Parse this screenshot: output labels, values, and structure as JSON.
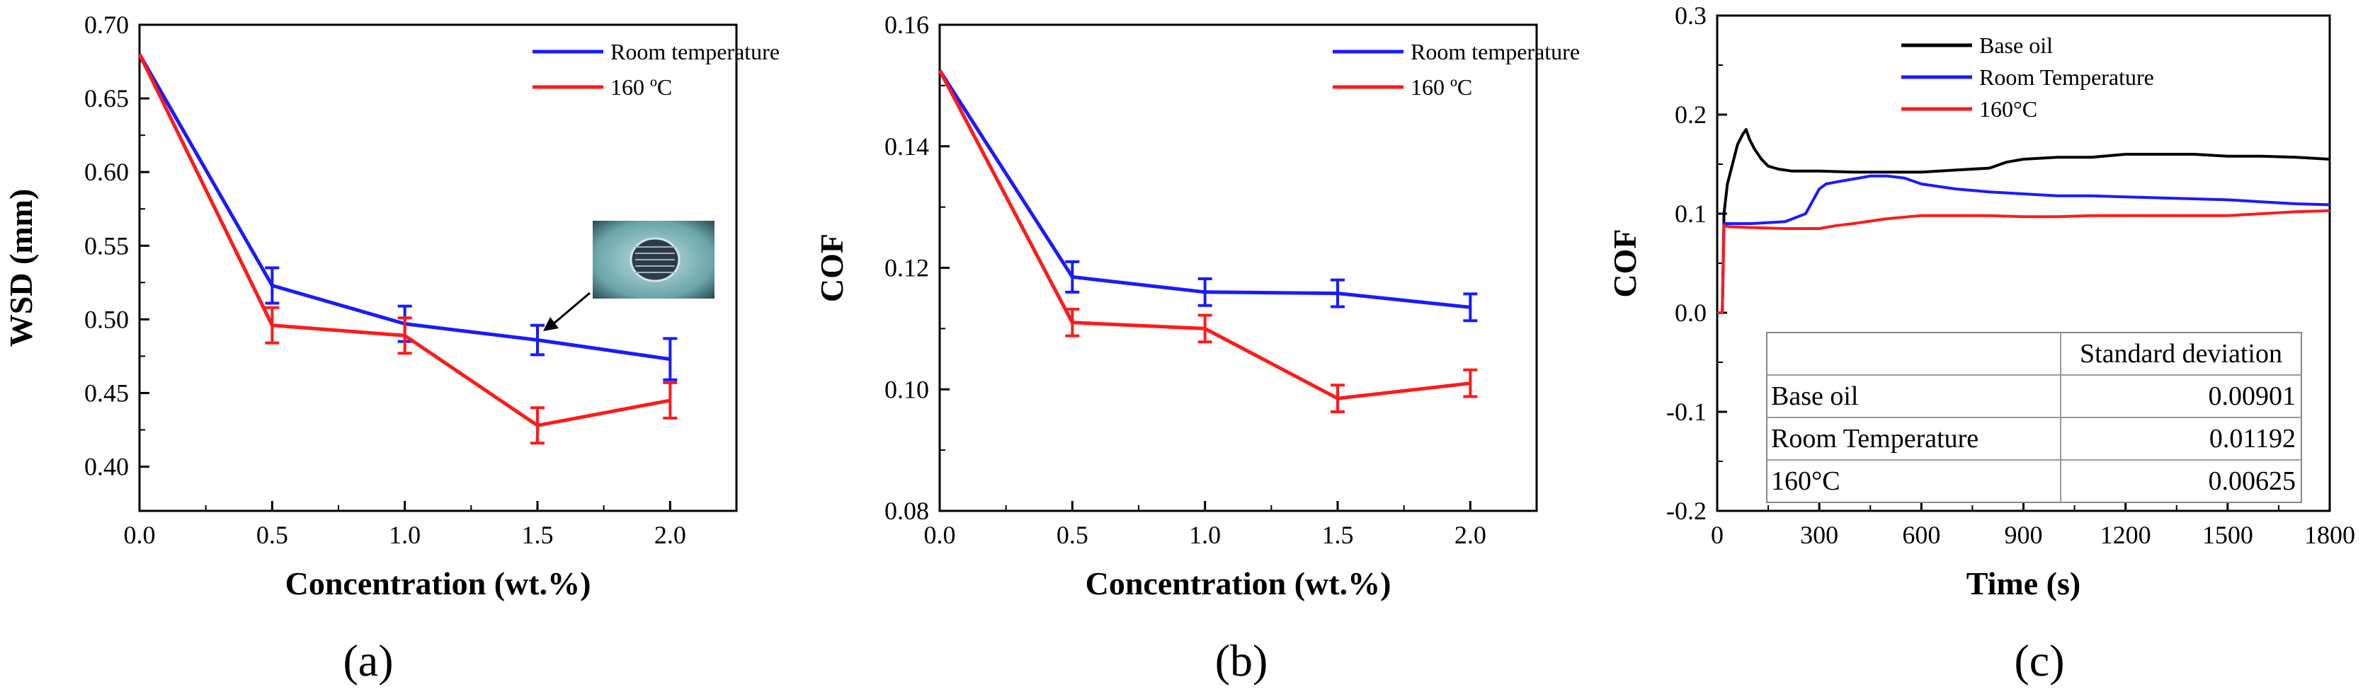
{
  "chart_data": [
    {
      "type": "line",
      "panel_label": "(a)",
      "xlabel": "Concentration (wt.%)",
      "ylabel": "WSD (mm)",
      "xlim": [
        0.0,
        2.25
      ],
      "ylim": [
        0.37,
        0.7
      ],
      "xticks": [
        "0.0",
        "0.5",
        "1.0",
        "1.5",
        "2.0"
      ],
      "yticks": [
        "0.40",
        "0.45",
        "0.50",
        "0.55",
        "0.60",
        "0.65",
        "0.70"
      ],
      "x": [
        0.0,
        0.5,
        1.0,
        1.5,
        2.0
      ],
      "series": [
        {
          "name": "Room temperature",
          "color": "#1a1aff",
          "values": [
            0.68,
            0.523,
            0.497,
            0.486,
            0.473
          ],
          "errors": [
            0,
            0.012,
            0.012,
            0.01,
            0.014
          ]
        },
        {
          "name": "160 ºC",
          "color": "#ff1a1a",
          "values": [
            0.68,
            0.496,
            0.489,
            0.428,
            0.445
          ],
          "errors": [
            0,
            0.012,
            0.012,
            0.012,
            0.012
          ]
        }
      ],
      "annotation": "wear-scar-image"
    },
    {
      "type": "line",
      "panel_label": "(b)",
      "xlabel": "Concentration (wt.%)",
      "ylabel": "COF",
      "xlim": [
        0.0,
        2.25
      ],
      "ylim": [
        0.08,
        0.16
      ],
      "xticks": [
        "0.0",
        "0.5",
        "1.0",
        "1.5",
        "2.0"
      ],
      "yticks": [
        "0.08",
        "0.10",
        "0.12",
        "0.14",
        "0.16"
      ],
      "x": [
        0.0,
        0.5,
        1.0,
        1.5,
        2.0
      ],
      "series": [
        {
          "name": "Room temperature",
          "color": "#1a1aff",
          "values": [
            0.1525,
            0.1185,
            0.116,
            0.1158,
            0.1135
          ],
          "errors": [
            0,
            0.0025,
            0.0022,
            0.0022,
            0.0022
          ]
        },
        {
          "name": "160 ºC",
          "color": "#ff1a1a",
          "values": [
            0.1525,
            0.111,
            0.11,
            0.0985,
            0.101
          ],
          "errors": [
            0,
            0.0022,
            0.0022,
            0.0022,
            0.0022
          ]
        }
      ]
    },
    {
      "type": "line",
      "panel_label": "(c)",
      "xlabel": "Time (s)",
      "ylabel": "COF",
      "xlim": [
        0,
        1800
      ],
      "ylim": [
        -0.2,
        0.3
      ],
      "xticks": [
        "0",
        "300",
        "600",
        "900",
        "1200",
        "1500",
        "1800"
      ],
      "yticks": [
        "-0.2",
        "-0.1",
        "0.0",
        "0.1",
        "0.2",
        "0.3"
      ],
      "series": [
        {
          "name": "Base oil",
          "color": "#000000",
          "x": [
            0,
            15,
            20,
            30,
            45,
            60,
            75,
            85,
            95,
            110,
            130,
            150,
            180,
            220,
            260,
            300,
            400,
            500,
            600,
            700,
            800,
            850,
            900,
            1000,
            1100,
            1200,
            1300,
            1400,
            1500,
            1600,
            1700,
            1800
          ],
          "values": [
            0.0,
            0.0,
            0.1,
            0.13,
            0.15,
            0.17,
            0.18,
            0.185,
            0.175,
            0.165,
            0.155,
            0.148,
            0.145,
            0.143,
            0.143,
            0.143,
            0.142,
            0.142,
            0.142,
            0.144,
            0.146,
            0.152,
            0.155,
            0.157,
            0.157,
            0.16,
            0.16,
            0.16,
            0.158,
            0.158,
            0.157,
            0.155
          ]
        },
        {
          "name": "Room Temperature",
          "color": "#1a1aff",
          "x": [
            0,
            15,
            20,
            30,
            100,
            200,
            260,
            300,
            320,
            350,
            400,
            450,
            500,
            550,
            600,
            700,
            800,
            900,
            1000,
            1100,
            1200,
            1300,
            1400,
            1500,
            1600,
            1700,
            1800
          ],
          "values": [
            0.0,
            0.0,
            0.09,
            0.09,
            0.09,
            0.092,
            0.1,
            0.125,
            0.13,
            0.132,
            0.135,
            0.138,
            0.138,
            0.136,
            0.13,
            0.125,
            0.122,
            0.12,
            0.118,
            0.118,
            0.117,
            0.116,
            0.115,
            0.114,
            0.112,
            0.11,
            0.109
          ]
        },
        {
          "name": "160°C",
          "color": "#ff1a1a",
          "x": [
            0,
            15,
            20,
            30,
            100,
            200,
            300,
            350,
            400,
            500,
            600,
            700,
            800,
            900,
            1000,
            1100,
            1200,
            1300,
            1400,
            1500,
            1600,
            1700,
            1800
          ],
          "values": [
            0.0,
            0.0,
            0.088,
            0.087,
            0.086,
            0.085,
            0.085,
            0.088,
            0.09,
            0.095,
            0.098,
            0.098,
            0.098,
            0.097,
            0.097,
            0.098,
            0.098,
            0.098,
            0.098,
            0.098,
            0.1,
            0.102,
            0.103
          ]
        }
      ],
      "table": {
        "header": [
          "",
          "Standard deviation"
        ],
        "rows": [
          [
            "Base oil",
            "0.00901"
          ],
          [
            "Room Temperature",
            "0.01192"
          ],
          [
            "160°C",
            "0.00625"
          ]
        ]
      }
    }
  ]
}
